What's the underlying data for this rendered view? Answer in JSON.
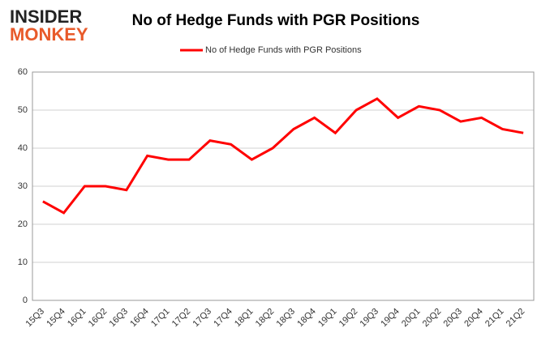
{
  "logo": {
    "line1": "INSIDER",
    "line2": "MONKEY"
  },
  "chart_data": {
    "type": "line",
    "title": "No of Hedge Funds with PGR Positions",
    "categories": [
      "15Q3",
      "15Q4",
      "16Q1",
      "16Q2",
      "16Q3",
      "16Q4",
      "17Q1",
      "17Q2",
      "17Q3",
      "17Q4",
      "18Q1",
      "18Q2",
      "18Q3",
      "18Q4",
      "19Q1",
      "19Q2",
      "19Q3",
      "19Q4",
      "20Q1",
      "20Q2",
      "20Q3",
      "20Q4",
      "21Q1",
      "21Q2"
    ],
    "series": [
      {
        "name": "No of Hedge Funds with PGR Positions",
        "color": "#ff0000",
        "values": [
          26,
          23,
          30,
          30,
          29,
          38,
          37,
          37,
          42,
          41,
          37,
          40,
          45,
          48,
          44,
          50,
          53,
          48,
          51,
          50,
          47,
          48,
          45,
          44
        ]
      }
    ],
    "ylim": [
      0,
      60
    ],
    "yticks": [
      0,
      10,
      20,
      30,
      40,
      50,
      60
    ],
    "grid": true,
    "legend": "top"
  }
}
